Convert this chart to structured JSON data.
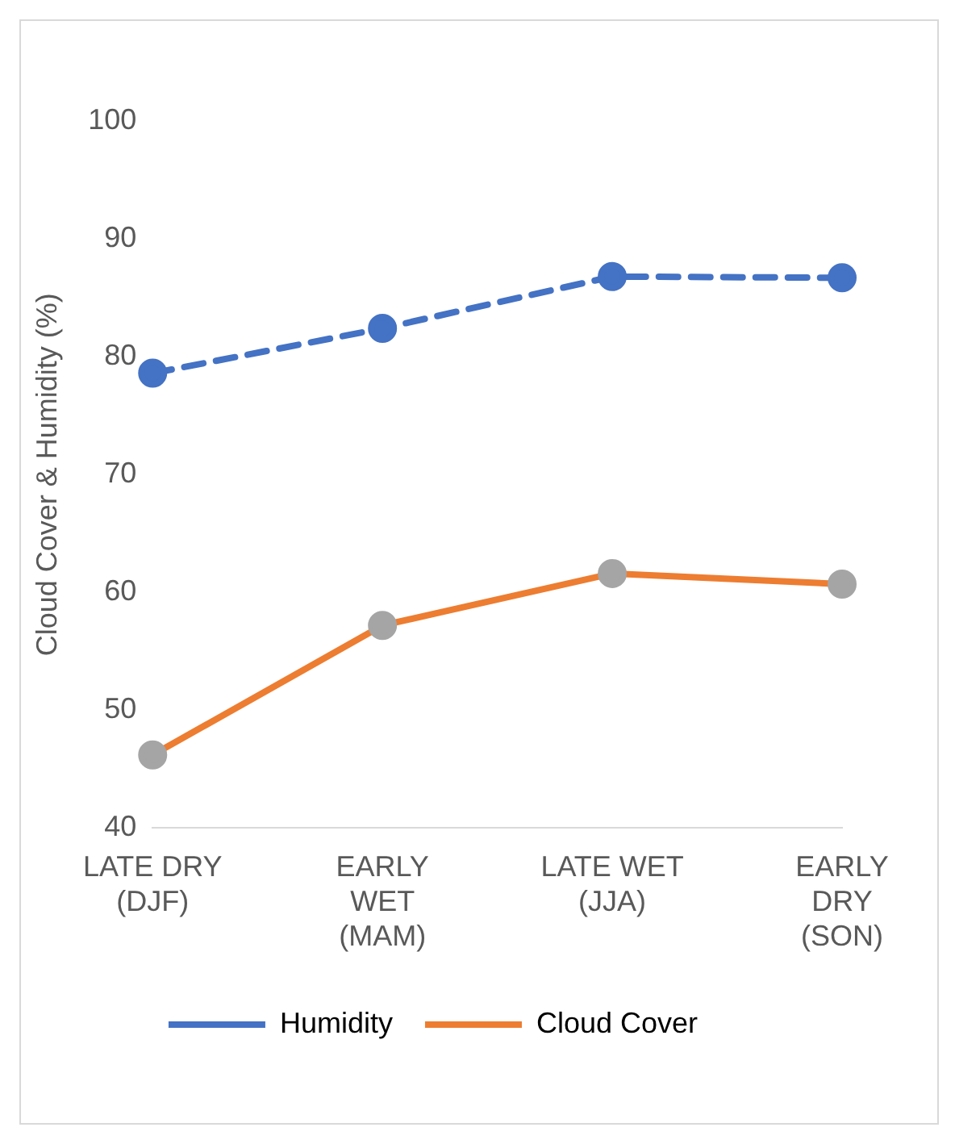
{
  "chart_data": {
    "type": "line",
    "ylabel": "Cloud Cover & Humidity (%)",
    "categories": [
      "LATE DRY (DJF)",
      "EARLY WET (MAM)",
      "LATE WET (JJA)",
      "EARLY DRY (SON)"
    ],
    "series": [
      {
        "name": "Humidity",
        "color": "#4472c4",
        "line_style": "dashed",
        "values": [
          78.6,
          82.4,
          86.8,
          86.7
        ]
      },
      {
        "name": "Cloud Cover",
        "color": "#ed7d31",
        "colors": [
          "#a5a5a5",
          "#a5a5a5",
          "#a5a5a5",
          "#a5a5a5"
        ],
        "values": [
          46.2,
          57.2,
          61.6,
          60.7
        ]
      }
    ],
    "ylim": [
      40,
      100
    ],
    "yticks": [
      40,
      50,
      60,
      70,
      80,
      90,
      100
    ],
    "grid": false,
    "legend": "bottom",
    "marker": "circle"
  }
}
